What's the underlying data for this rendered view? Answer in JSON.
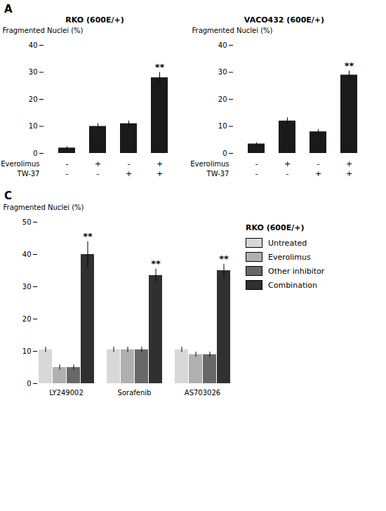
{
  "chart_data": [
    {
      "type": "bar",
      "panel": "A",
      "title": "RKO (600E/+)",
      "categories": [
        null,
        null,
        null,
        null
      ],
      "values": [
        2,
        10,
        11,
        28
      ],
      "errors": [
        0.5,
        1.0,
        1.0,
        2.0
      ],
      "color": "#1a1a1a",
      "ylabel": "Fragmented Nuclei (%)",
      "ylim": [
        0,
        40
      ],
      "yticks": [
        0,
        10,
        20,
        30,
        40
      ],
      "treatment_rows": [
        {
          "name": "Everolimus",
          "signs": [
            "-",
            "+",
            "-",
            "+"
          ]
        },
        {
          "name": "TW-37",
          "signs": [
            "-",
            "-",
            "+",
            "+"
          ]
        }
      ],
      "significance_marks": [
        null,
        null,
        null,
        "**"
      ]
    },
    {
      "type": "bar",
      "title": "VACO432 (600E/+)",
      "categories": [
        null,
        null,
        null,
        null
      ],
      "values": [
        3.5,
        12,
        8,
        29
      ],
      "errors": [
        0.5,
        1.2,
        0.8,
        1.5
      ],
      "color": "#1a1a1a",
      "ylabel": "Fragmented Nuclei (%)",
      "ylim": [
        0,
        40
      ],
      "yticks": [
        0,
        10,
        20,
        30,
        40
      ],
      "treatment_rows": [
        {
          "name": "Everolimus",
          "signs": [
            "-",
            "+",
            "-",
            "+"
          ]
        },
        {
          "name": "TW-37",
          "signs": [
            "-",
            "-",
            "+",
            "+"
          ]
        }
      ],
      "significance_marks": [
        null,
        null,
        null,
        "**"
      ]
    },
    {
      "type": "bar",
      "panel": "C",
      "title": "RKO (600E/+)",
      "categories": [
        "LY249002",
        "Sorafenib",
        "AS703026"
      ],
      "series": [
        {
          "name": "Untreated",
          "color": "#d8d8d8",
          "values": [
            10.5,
            10.5,
            10.5
          ],
          "errors": [
            0.8,
            0.8,
            0.8
          ]
        },
        {
          "name": "Everolimus",
          "color": "#b0b0b0",
          "values": [
            5,
            10.5,
            9
          ],
          "errors": [
            0.8,
            0.8,
            0.8
          ]
        },
        {
          "name": "Other inhibitor",
          "color": "#686868",
          "values": [
            5,
            10.5,
            9
          ],
          "errors": [
            0.8,
            0.8,
            0.8
          ]
        },
        {
          "name": "Combination",
          "color": "#303030",
          "values": [
            40,
            33.5,
            35
          ],
          "errors": [
            4,
            2,
            2
          ],
          "significance_marks": [
            "**",
            "**",
            "**"
          ]
        }
      ],
      "ylabel": "Fragmented Nuclei (%)",
      "ylim": [
        0,
        50
      ],
      "yticks": [
        0,
        10,
        20,
        30,
        40,
        50
      ],
      "legend": "right"
    }
  ]
}
